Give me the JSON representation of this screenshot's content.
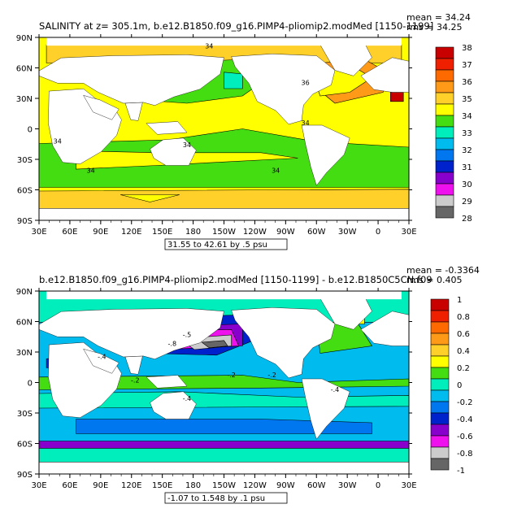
{
  "chart_data": [
    {
      "type": "heatmap",
      "title": "SALINITY at z= 305.1m, b.e12.B1850.f09_g16.PIMP4-pliomip2.modMed [1150-1199]",
      "stat_mean": "mean = 34.24",
      "stat_rms": "rms = 34.25",
      "range_label": "31.55 to 42.61 by .5 psu",
      "x_ticks": [
        "30E",
        "60E",
        "90E",
        "120E",
        "150E",
        "180",
        "150W",
        "120W",
        "90W",
        "60W",
        "30W",
        "0",
        "30E"
      ],
      "y_ticks": [
        "90N",
        "60N",
        "30N",
        "0",
        "30S",
        "60S",
        "90S"
      ],
      "contour_labels": [
        "34",
        "34",
        "34",
        "34",
        "34",
        "36",
        "34"
      ],
      "colorbar": {
        "labels": [
          "38",
          "37",
          "36",
          "35",
          "34",
          "33",
          "32",
          "31",
          "30",
          "29",
          "28"
        ],
        "colors": [
          "#c80000",
          "#ee2000",
          "#ff6a00",
          "#ff9a18",
          "#ffcf2a",
          "#ffff00",
          "#44dd11",
          "#00eebb",
          "#00bbee",
          "#0077ee",
          "#0022cc",
          "#8800cc",
          "#ee11ee",
          "#cccccc",
          "#666666"
        ]
      }
    },
    {
      "type": "heatmap",
      "title": "b.e12.B1850.f09_g16.PIMP4-pliomip2.modMed [1150-1199] - b.e12.B1850C5CN.f09",
      "stat_mean": "mean = -0.3364",
      "stat_rms": "rms = 0.405",
      "range_label": "-1.07 to 1.548 by .1 psu",
      "x_ticks": [
        "30E",
        "60E",
        "90E",
        "120E",
        "150E",
        "180",
        "150W",
        "120W",
        "90W",
        "60W",
        "30W",
        "0",
        "30E"
      ],
      "y_ticks": [
        "90N",
        "60N",
        "30N",
        "0",
        "30S",
        "60S",
        "90S"
      ],
      "contour_labels": [
        "-.5",
        "-.8",
        "-.2",
        "-.2",
        "-.4",
        "-.4",
        "-.4",
        "-.2"
      ],
      "colorbar": {
        "labels": [
          "1",
          "0.8",
          "0.6",
          "0.4",
          "0.2",
          "0",
          "-0.2",
          "-0.4",
          "-0.6",
          "-0.8",
          "-1"
        ],
        "colors": [
          "#c80000",
          "#ee2000",
          "#ff6a00",
          "#ff9a18",
          "#ffcf2a",
          "#ffff00",
          "#44dd11",
          "#00eebb",
          "#00bbee",
          "#0077ee",
          "#0022cc",
          "#8800cc",
          "#ee11ee",
          "#cccccc",
          "#666666"
        ]
      }
    }
  ]
}
